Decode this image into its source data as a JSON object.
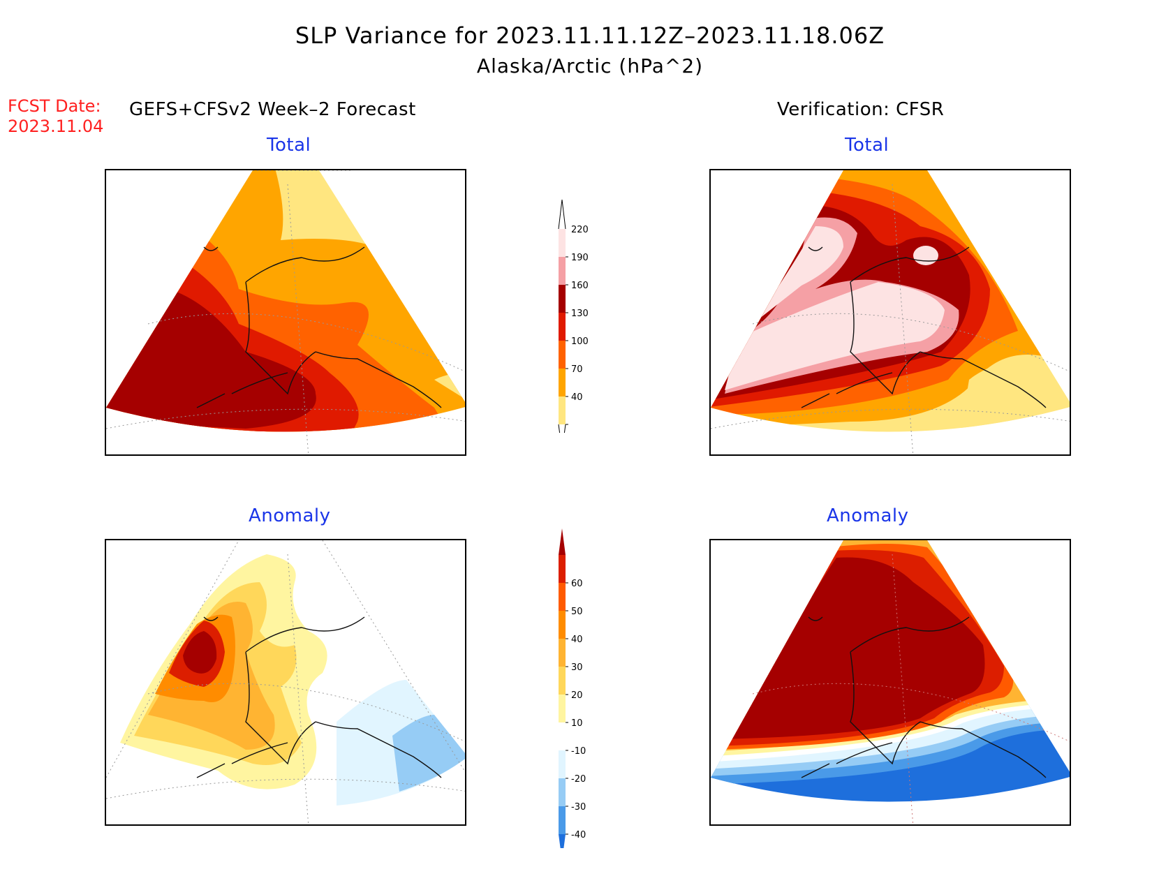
{
  "header": {
    "title_line1": "SLP Variance for 2023.11.11.12Z–2023.11.18.06Z",
    "title_line2": "Alaska/Arctic (hPa^2)",
    "fcst_label": "FCST Date:",
    "fcst_date": "2023.11.04",
    "left_subtitle": "GEFS+CFSv2 Week–2 Forecast",
    "right_subtitle": "Verification: CFSR"
  },
  "panels": {
    "forecast_total": "Total",
    "verification_total": "Total",
    "forecast_anomaly": "Anomaly",
    "verification_anomaly": "Anomaly"
  },
  "colorbar_total": {
    "levels": [
      "40",
      "70",
      "100",
      "130",
      "160",
      "190",
      "220"
    ],
    "colors": [
      "#ffe680",
      "#ffa500",
      "#ff6200",
      "#e01a00",
      "#a50000",
      "#f5a0a5",
      "#fde3e3"
    ]
  },
  "colorbar_anomaly": {
    "levels": [
      "-40",
      "-30",
      "-20",
      "-10",
      "10",
      "20",
      "30",
      "40",
      "50",
      "60"
    ],
    "colors": [
      "#1e6fdc",
      "#4a9ae8",
      "#96ccf5",
      "#e1f5ff",
      "#ffffff",
      "#fff5a0",
      "#ffd75a",
      "#ffb432",
      "#ff8c00",
      "#ff5a00",
      "#dc1e00",
      "#a50000"
    ]
  }
}
